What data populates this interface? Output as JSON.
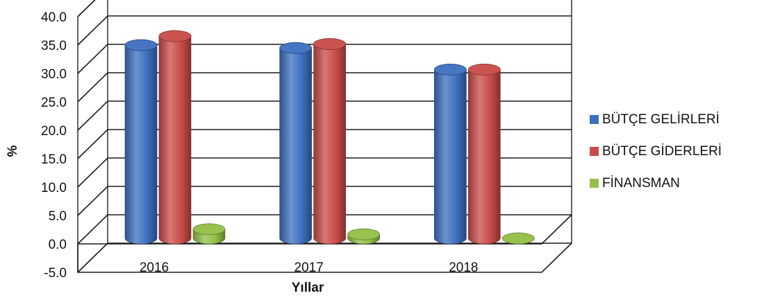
{
  "chart_data": {
    "type": "bar",
    "title": "",
    "xlabel": "Yıllar",
    "ylabel": "%",
    "ylim": [
      -5,
      40
    ],
    "ytick_step": 5,
    "ytick_labels": [
      "-5.0",
      "0.0",
      "5.0",
      "10.0",
      "15.0",
      "20.0",
      "25.0",
      "30.0",
      "35.0",
      "40.0"
    ],
    "categories": [
      "2016",
      "2017",
      "2018"
    ],
    "series": [
      {
        "name": "BÜTÇE GELİRLERİ",
        "values": [
          34.0,
          33.5,
          29.7
        ],
        "color": "#3c6fbf"
      },
      {
        "name": "BÜTÇE GİDERLERİ",
        "values": [
          35.6,
          34.2,
          29.7
        ],
        "color": "#c84b48"
      },
      {
        "name": "FİNANSMAN",
        "values": [
          1.6,
          0.7,
          0.0
        ],
        "color": "#92bf45"
      }
    ],
    "grid": true,
    "legend_position": "right",
    "style": "3d-cylinder"
  }
}
